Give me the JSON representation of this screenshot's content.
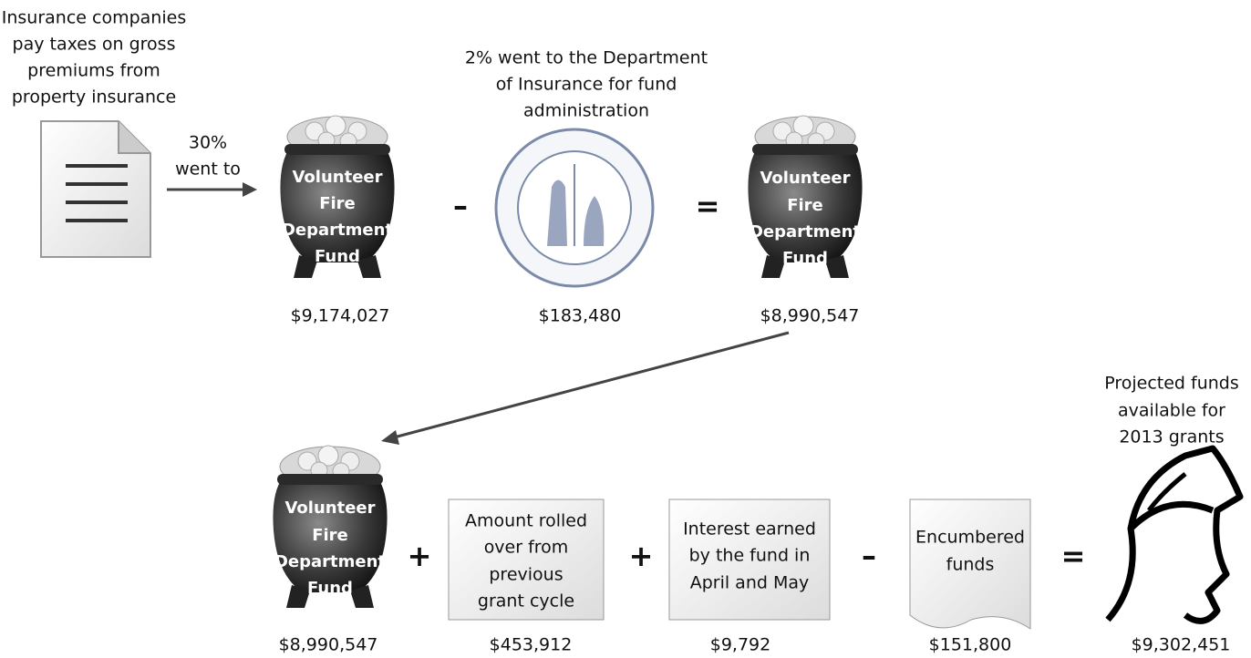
{
  "nodes": [
    {
      "label": [
        "Insurance companies",
        "pay taxes on gross",
        "premiums from",
        "property insurance"
      ]
    },
    {
      "label": [
        "Volunteer",
        "Fire",
        "Department",
        "Fund"
      ],
      "amount": "$9,174,027"
    },
    {
      "caption": [
        "2% went to the Department",
        "of Insurance for fund",
        "administration"
      ],
      "amount": "$183,480"
    },
    {
      "label": [
        "Volunteer",
        "Fire",
        "Department",
        "Fund"
      ],
      "amount": "$8,990,547"
    },
    {
      "label": [
        "Volunteer",
        "Fire",
        "Department",
        "Fund"
      ],
      "amount": "$8,990,547"
    },
    {
      "label": [
        "Amount rolled",
        "over from",
        "previous",
        "grant cycle"
      ],
      "amount": "$453,912"
    },
    {
      "label": [
        "Interest earned",
        "by the fund in",
        "April and May"
      ],
      "amount": "$9,792"
    },
    {
      "label": [
        "Encumbered",
        "funds"
      ],
      "amount": "$151,800"
    },
    {
      "caption": [
        "Projected funds",
        "available for",
        "2013 grants"
      ],
      "amount": "$9,302,451"
    }
  ],
  "edge_label": [
    "30%",
    "went to"
  ],
  "operators": [
    "–",
    "=",
    "+",
    "+",
    "–",
    "="
  ]
}
